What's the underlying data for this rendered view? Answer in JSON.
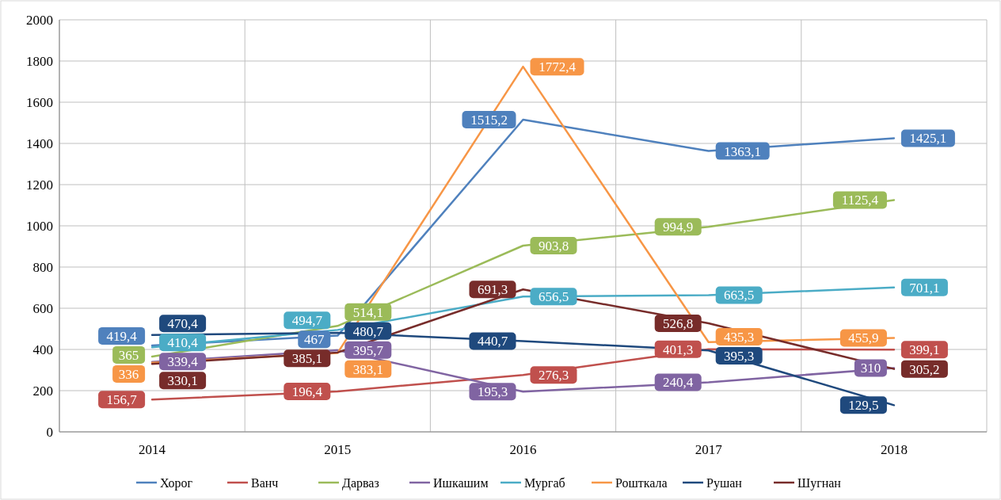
{
  "chart_data": {
    "type": "line",
    "categories": [
      "2014",
      "2015",
      "2016",
      "2017",
      "2018"
    ],
    "ylim": [
      0,
      2000
    ],
    "yticks": [
      0,
      200,
      400,
      600,
      800,
      1000,
      1200,
      1400,
      1600,
      1800,
      2000
    ],
    "grid": true,
    "legend": "bottom",
    "marker": "none",
    "series": [
      {
        "name": "Хорог",
        "color": "#4f81bd",
        "values": [
          419.4,
          467,
          1515.2,
          1363.1,
          1425.1
        ],
        "value_labels": [
          "419,4",
          "467",
          "1515,2",
          "1363,1",
          "1425,1"
        ]
      },
      {
        "name": "Ванч",
        "color": "#c0504d",
        "values": [
          156.7,
          196.4,
          276.3,
          401.3,
          399.1
        ],
        "value_labels": [
          "156,7",
          "196,4",
          "276,3",
          "401,3",
          "399,1"
        ]
      },
      {
        "name": "Дарваз",
        "color": "#9bbb59",
        "values": [
          365,
          514.1,
          903.8,
          994.9,
          1125.4
        ],
        "value_labels": [
          "365",
          "514,1",
          "903,8",
          "994,9",
          "1125,4"
        ]
      },
      {
        "name": "Ишкашим",
        "color": "#8064a2",
        "values": [
          339.4,
          395.7,
          195.3,
          240.4,
          310
        ],
        "value_labels": [
          "339,4",
          "395,7",
          "195,3",
          "240,4",
          "310"
        ]
      },
      {
        "name": "Мургаб",
        "color": "#4bacc6",
        "values": [
          410.4,
          494.7,
          656.5,
          663.5,
          701.1
        ],
        "value_labels": [
          "410,4",
          "494,7",
          "656,5",
          "663,5",
          "701,1"
        ]
      },
      {
        "name": "Рошткала",
        "color": "#f79646",
        "values": [
          336,
          383.1,
          1772.4,
          435.3,
          455.9
        ],
        "value_labels": [
          "336",
          "383,1",
          "1772,4",
          "435,3",
          "455,9"
        ]
      },
      {
        "name": "Рушан",
        "color": "#1f497d",
        "values": [
          470.4,
          480.7,
          440.7,
          395.3,
          129.5
        ],
        "value_labels": [
          "470,4",
          "480,7",
          "440,7",
          "395,3",
          "129,5"
        ]
      },
      {
        "name": "Шугнан",
        "color": "#772c2a",
        "values": [
          330.1,
          385.1,
          691.3,
          526.8,
          305.2
        ],
        "value_labels": [
          "330,1",
          "385,1",
          "691,3",
          "526,8",
          "305,2"
        ]
      }
    ]
  }
}
